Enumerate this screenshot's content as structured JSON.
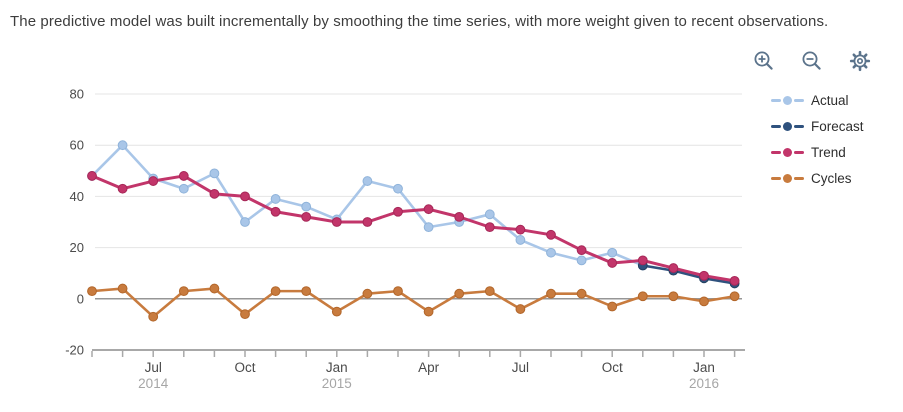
{
  "subtitle": "The predictive model was built incrementally by smoothing the time series, with more weight given to recent observations.",
  "toolbar": {
    "icons": [
      {
        "name": "zoom-in-icon"
      },
      {
        "name": "zoom-out-icon"
      },
      {
        "name": "settings-gear-icon"
      }
    ],
    "icon_color": "#5b738b"
  },
  "chart_data": {
    "type": "line",
    "title": "",
    "xlabel": "",
    "ylabel": "",
    "ylim": [
      -20,
      80
    ],
    "yticks": [
      80,
      60,
      40,
      20,
      0,
      -20
    ],
    "grid": true,
    "legend_position": "right",
    "categories": [
      "May 2014",
      "Jun 2014",
      "Jul 2014",
      "Aug 2014",
      "Sep 2014",
      "Oct 2014",
      "Nov 2014",
      "Dec 2014",
      "Jan 2015",
      "Feb 2015",
      "Mar 2015",
      "Apr 2015",
      "May 2015",
      "Jun 2015",
      "Jul 2015",
      "Aug 2015",
      "Sep 2015",
      "Oct 2015",
      "Nov 2015",
      "Dec 2015",
      "Jan 2016",
      "Feb 2016"
    ],
    "x_tick_labels": [
      {
        "index": 2,
        "month": "Jul",
        "year": "2014"
      },
      {
        "index": 5,
        "month": "Oct",
        "year": ""
      },
      {
        "index": 8,
        "month": "Jan",
        "year": "2015"
      },
      {
        "index": 11,
        "month": "Apr",
        "year": ""
      },
      {
        "index": 14,
        "month": "Jul",
        "year": ""
      },
      {
        "index": 17,
        "month": "Oct",
        "year": ""
      },
      {
        "index": 20,
        "month": "Jan",
        "year": "2016"
      }
    ],
    "series": [
      {
        "name": "Actual",
        "color": "#a9c6e8",
        "dot_border": "#8fb3da",
        "values": [
          48,
          60,
          47,
          43,
          49,
          30,
          39,
          36,
          31,
          46,
          43,
          28,
          30,
          33,
          23,
          18,
          15,
          18,
          13,
          null,
          null,
          null
        ]
      },
      {
        "name": "Forecast",
        "color": "#2f527e",
        "dot_border": "#24405f",
        "values": [
          null,
          null,
          null,
          null,
          null,
          null,
          null,
          null,
          null,
          null,
          null,
          null,
          null,
          null,
          null,
          null,
          null,
          null,
          13,
          11,
          8,
          6
        ]
      },
      {
        "name": "Trend",
        "color": "#c2356a",
        "dot_border": "#a62757",
        "values": [
          48,
          43,
          46,
          48,
          41,
          40,
          34,
          32,
          30,
          30,
          34,
          35,
          32,
          28,
          27,
          25,
          19,
          14,
          15,
          12,
          9,
          7
        ]
      },
      {
        "name": "Cycles",
        "color": "#c87b3e",
        "dot_border": "#b2662a",
        "values": [
          3,
          4,
          -7,
          3,
          4,
          -6,
          3,
          3,
          -5,
          2,
          3,
          -5,
          2,
          3,
          -4,
          2,
          2,
          -3,
          1,
          1,
          -1,
          1
        ]
      }
    ],
    "colors": {
      "gridline": "#e4e4e4",
      "zero_line": "#969696",
      "axis_line": "#a8a8a8",
      "tick_label": "#4b4b4b",
      "year_label": "#a6a6a6"
    }
  }
}
